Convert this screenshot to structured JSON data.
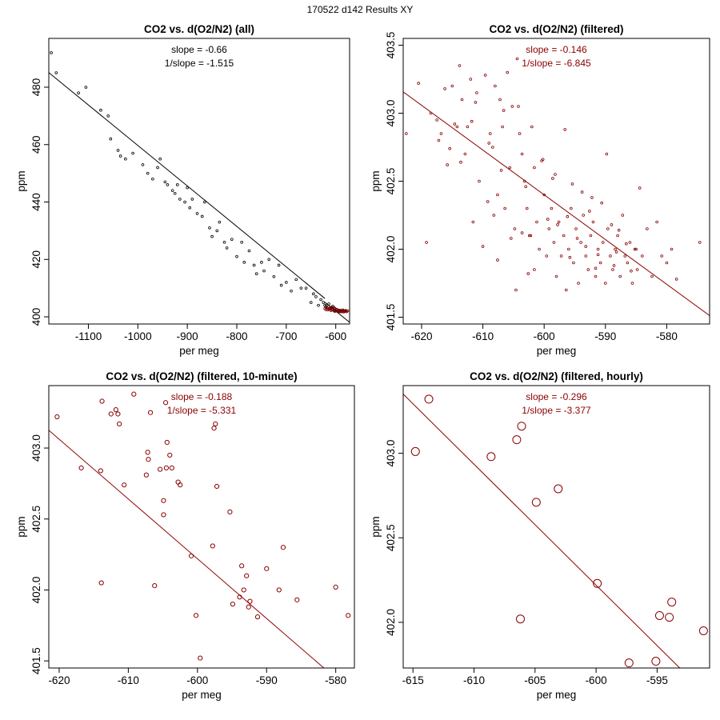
{
  "page": {
    "title": "170522   d142   Results XY",
    "colors": {
      "black": "#000000",
      "red": "#8b0000"
    }
  },
  "chart_data": [
    {
      "type": "scatter",
      "title": "CO2 vs. d(O2/N2) (all)",
      "xlabel": "per meg",
      "ylabel": "ppm",
      "annotation": [
        "slope = -0.66",
        "1/slope = -1.515"
      ],
      "annotation_color": "black",
      "xlim": [
        -1180,
        -572
      ],
      "ylim": [
        397.5,
        497
      ],
      "xticks": [
        -1100,
        -1000,
        -900,
        -800,
        -700,
        -600
      ],
      "yticks": [
        400,
        420,
        440,
        460,
        480
      ],
      "fit_line": {
        "slope": -0.14,
        "intercept": 318.0,
        "zones": [
          [
            -1180,
            -622,
            -0.141,
            318.7
          ],
          [
            -622,
            -572,
            -0.14,
            318.0
          ]
        ]
      },
      "fit_line_color": "black",
      "point_size": 1.4,
      "series": [
        {
          "name": "all",
          "color": "black",
          "x": [
            -1175,
            -1165,
            -1120,
            -1105,
            -1075,
            -1060,
            -1055,
            -1040,
            -1035,
            -1025,
            -1010,
            -990,
            -980,
            -970,
            -960,
            -955,
            -945,
            -940,
            -930,
            -925,
            -920,
            -915,
            -905,
            -900,
            -895,
            -890,
            -880,
            -870,
            -865,
            -855,
            -850,
            -840,
            -835,
            -825,
            -820,
            -810,
            -800,
            -790,
            -785,
            -775,
            -765,
            -760,
            -750,
            -745,
            -735,
            -725,
            -715,
            -710,
            -700,
            -690,
            -680,
            -670,
            -660,
            -650,
            -645,
            -640,
            -635,
            -630,
            -625,
            -622,
            -620,
            -618,
            -616,
            -614,
            -612,
            -610,
            -608,
            -606,
            -604,
            -602,
            -600,
            -598,
            -596,
            -594,
            -592,
            -590,
            -588,
            -586,
            -584,
            -582,
            -580
          ],
          "y": [
            492,
            485,
            478,
            480,
            472,
            470,
            462,
            458,
            456,
            455,
            457,
            453,
            450,
            448,
            452,
            455,
            447,
            446,
            444,
            443,
            446,
            441,
            440,
            445,
            438,
            441,
            436,
            435,
            440,
            431,
            428,
            430,
            433,
            426,
            424,
            427,
            421,
            426,
            419,
            423,
            418,
            415,
            419,
            416,
            420,
            414,
            418,
            411,
            412,
            409,
            413,
            410,
            410,
            405,
            408,
            407,
            404,
            406,
            405,
            404,
            403.5,
            404,
            403,
            404.5,
            402.8,
            403.2,
            402.5,
            403.7,
            402.2,
            403.0,
            402.0,
            402.6,
            402.1,
            401.9,
            402.3,
            402.0,
            401.8,
            402.4,
            402.1,
            401.9,
            402.2
          ]
        },
        {
          "name": "filtered",
          "color": "red",
          "x": [
            -622,
            -620,
            -618,
            -616,
            -614,
            -612,
            -610,
            -608,
            -606,
            -604,
            -602,
            -600,
            -598,
            -596,
            -594,
            -592,
            -590,
            -588,
            -586,
            -584,
            -582,
            -580,
            -578,
            -576
          ],
          "y": [
            402.9,
            402.5,
            403.1,
            402.4,
            402.7,
            403.0,
            402.2,
            403.3,
            402.6,
            403.2,
            401.9,
            402.4,
            402.1,
            402.0,
            402.3,
            401.8,
            402.2,
            401.9,
            402.0,
            401.7,
            402.1,
            402.0,
            401.8,
            402.1
          ]
        }
      ]
    },
    {
      "type": "scatter",
      "title": "CO2 vs. d(O2/N2) (filtered)",
      "xlabel": "per meg",
      "ylabel": "ppm",
      "annotation": [
        "slope = -0.146",
        "1/slope = -6.845"
      ],
      "annotation_color": "red",
      "xlim": [
        -623,
        -573
      ],
      "ylim": [
        401.45,
        403.55
      ],
      "xticks": [
        -620,
        -610,
        -600,
        -590,
        -580
      ],
      "yticks": [
        401.5,
        402.0,
        402.5,
        403.0,
        403.5
      ],
      "yticklabels": [
        "401.5",
        "402.0",
        "402.5",
        "403.0",
        "403.5"
      ],
      "fit_line": {
        "slope": -0.0329,
        "intercept": 382.66
      },
      "fit_line_color": "red",
      "point_size": 1.4,
      "series": [
        {
          "name": "filtered",
          "color": "red",
          "x": [
            -622.5,
            -620.5,
            -619.2,
            -618.5,
            -617.5,
            -616.8,
            -616.2,
            -615.8,
            -615.0,
            -614.6,
            -614.2,
            -613.8,
            -613.4,
            -612.9,
            -612.5,
            -612.0,
            -611.6,
            -611.0,
            -610.6,
            -610.0,
            -609.6,
            -609.2,
            -608.8,
            -608.4,
            -608.0,
            -607.6,
            -607.2,
            -606.8,
            -606.4,
            -606.0,
            -605.6,
            -605.2,
            -604.8,
            -604.4,
            -604.0,
            -603.6,
            -603.2,
            -602.8,
            -602.4,
            -602.0,
            -601.6,
            -601.2,
            -600.8,
            -600.4,
            -600.0,
            -599.6,
            -599.2,
            -598.8,
            -598.4,
            -598.0,
            -597.6,
            -597.2,
            -596.8,
            -596.4,
            -596.0,
            -595.6,
            -595.2,
            -594.8,
            -594.4,
            -594.0,
            -593.6,
            -593.2,
            -592.8,
            -592.4,
            -592.0,
            -591.6,
            -591.2,
            -590.8,
            -590.4,
            -590.0,
            -589.6,
            -589.2,
            -588.8,
            -588.4,
            -588.0,
            -587.6,
            -587.2,
            -586.8,
            -586.4,
            -586.0,
            -585.6,
            -585.2,
            -584.8,
            -584.4,
            -584.0,
            -583.2,
            -582.4,
            -581.6,
            -580.8,
            -580.0,
            -579.2,
            -578.4,
            -574.6,
            -608.2,
            -607.6,
            -605.4,
            -604.6,
            -603.6,
            -602.6,
            -601.6,
            -597.8,
            -596.6,
            -595.4,
            -593.2,
            -592.2,
            -591.2,
            -589.8,
            -588.6,
            -587.8,
            -586.6,
            -585.8,
            -617.2,
            -613.6,
            -611.8,
            -609.0,
            -604.2,
            -599.4,
            -598.2,
            -594.6,
            -590.6,
            -588.2,
            -606.6,
            -603.0,
            -600.2,
            -596.2,
            -593.8,
            -591.6,
            -589.0,
            -585.0,
            -615.4,
            -611.2,
            -607.0,
            -602.2,
            -598.6,
            -595.8,
            -592.6
          ],
          "y": [
            402.85,
            403.22,
            402.05,
            403.0,
            402.95,
            402.85,
            403.18,
            402.62,
            403.2,
            402.92,
            402.9,
            403.35,
            403.1,
            402.7,
            402.9,
            403.25,
            402.2,
            403.15,
            402.5,
            402.02,
            403.28,
            402.35,
            402.85,
            402.75,
            403.2,
            402.4,
            403.1,
            402.9,
            402.3,
            403.3,
            402.6,
            403.05,
            402.15,
            403.4,
            402.85,
            402.7,
            402.5,
            402.3,
            402.1,
            402.9,
            401.85,
            402.2,
            402.0,
            402.65,
            402.4,
            401.95,
            402.15,
            402.3,
            402.05,
            401.8,
            402.2,
            401.95,
            402.1,
            401.7,
            402.0,
            402.3,
            401.9,
            402.15,
            401.75,
            402.05,
            402.25,
            401.95,
            401.85,
            402.1,
            402.2,
            401.8,
            402.0,
            401.9,
            402.05,
            401.75,
            402.15,
            401.95,
            401.85,
            402.0,
            402.1,
            401.8,
            402.25,
            401.95,
            401.9,
            402.05,
            401.75,
            402.0,
            401.85,
            402.45,
            401.95,
            402.15,
            401.8,
            402.2,
            401.95,
            401.9,
            402.0,
            401.78,
            402.05,
            402.25,
            401.92,
            402.08,
            401.7,
            402.12,
            401.82,
            402.6,
            402.18,
            402.88,
            402.48,
            402.02,
            402.38,
            401.96,
            402.7,
            401.88,
            402.14,
            402.04,
            401.84,
            402.8,
            402.64,
            402.94,
            402.78,
            403.05,
            402.22,
            402.55,
            402.08,
            402.34,
            401.98,
            403.02,
            402.46,
            402.66,
            402.24,
            402.42,
            401.86,
            402.18,
            402.0,
            402.74,
            403.08,
            402.58,
            402.1,
            402.52,
            401.94,
            402.28
          ]
        }
      ]
    },
    {
      "type": "scatter",
      "title": "CO2 vs. d(O2/N2) (filtered, 10-minute)",
      "xlabel": "per meg",
      "ylabel": "ppm",
      "annotation": [
        "slope = -0.188",
        "1/slope = -5.331"
      ],
      "annotation_color": "red",
      "xlim": [
        -621.5,
        -577.3
      ],
      "ylim": [
        401.45,
        403.44
      ],
      "xticks": [
        -620,
        -610,
        -600,
        -590,
        -580
      ],
      "yticks": [
        401.5,
        402.0,
        402.5,
        403.0
      ],
      "yticklabels": [
        "401.5",
        "402.0",
        "402.5",
        "403.0"
      ],
      "fit_line": {
        "slope": -0.0421,
        "intercept": 376.96
      },
      "fit_line_color": "red",
      "point_size": 2.6,
      "series": [
        {
          "name": "10-minute",
          "color": "red",
          "x": [
            -620.3,
            -616.8,
            -614,
            -613.9,
            -613.8,
            -612.5,
            -611.8,
            -611.5,
            -611.3,
            -610.6,
            -609.2,
            -607.4,
            -607.2,
            -607.1,
            -606.8,
            -606.2,
            -605.4,
            -604.9,
            -604.9,
            -604.6,
            -604.5,
            -604.4,
            -604.0,
            -603.7,
            -602.8,
            -602.5,
            -600.9,
            -600.2,
            -599.6,
            -597.8,
            -597.6,
            -597.4,
            -597.2,
            -595.3,
            -594.9,
            -593.9,
            -593.6,
            -593.3,
            -592.9,
            -592.6,
            -592.4,
            -591.3,
            -590.0,
            -588.2,
            -587.6,
            -585.6,
            -580.0,
            -578.2
          ],
          "y": [
            403.22,
            402.86,
            402.84,
            402.05,
            403.33,
            403.24,
            403.27,
            403.24,
            403.17,
            402.74,
            403.38,
            402.81,
            402.97,
            402.92,
            403.25,
            402.03,
            402.85,
            402.53,
            402.63,
            403.32,
            402.86,
            403.04,
            402.95,
            402.86,
            402.76,
            402.74,
            402.24,
            401.82,
            401.52,
            402.31,
            403.14,
            403.17,
            402.73,
            402.55,
            401.9,
            401.95,
            402.17,
            402.0,
            402.1,
            401.88,
            401.92,
            401.81,
            402.15,
            402.0,
            402.3,
            401.93,
            402.02,
            401.82
          ]
        }
      ]
    },
    {
      "type": "scatter",
      "title": "CO2 vs. d(O2/N2) (filtered, hourly)",
      "xlabel": "per meg",
      "ylabel": "ppm",
      "annotation": [
        "slope = -0.296",
        "1/slope = -3.377"
      ],
      "annotation_color": "red",
      "xlim": [
        -615.8,
        -590.7
      ],
      "ylim": [
        401.73,
        403.4
      ],
      "xticks": [
        -615,
        -610,
        -605,
        -600,
        -595
      ],
      "yticks": [
        402.0,
        402.5,
        403.0
      ],
      "yticklabels": [
        "402.0",
        "402.5",
        "403.0"
      ],
      "fit_line": {
        "slope": -0.0715,
        "intercept": 359.32
      },
      "fit_line_color": "red",
      "point_size": 5,
      "series": [
        {
          "name": "hourly",
          "color": "red",
          "x": [
            -614.8,
            -613.7,
            -608.6,
            -606.5,
            -606.1,
            -606.2,
            -604.9,
            -603.1,
            -599.9,
            -597.3,
            -595.1,
            -594.8,
            -594.0,
            -593.8,
            -591.2
          ],
          "y": [
            403.01,
            403.32,
            402.98,
            403.08,
            403.16,
            402.02,
            402.71,
            402.79,
            402.23,
            401.76,
            401.77,
            402.04,
            402.03,
            402.12,
            401.95
          ]
        }
      ]
    }
  ]
}
